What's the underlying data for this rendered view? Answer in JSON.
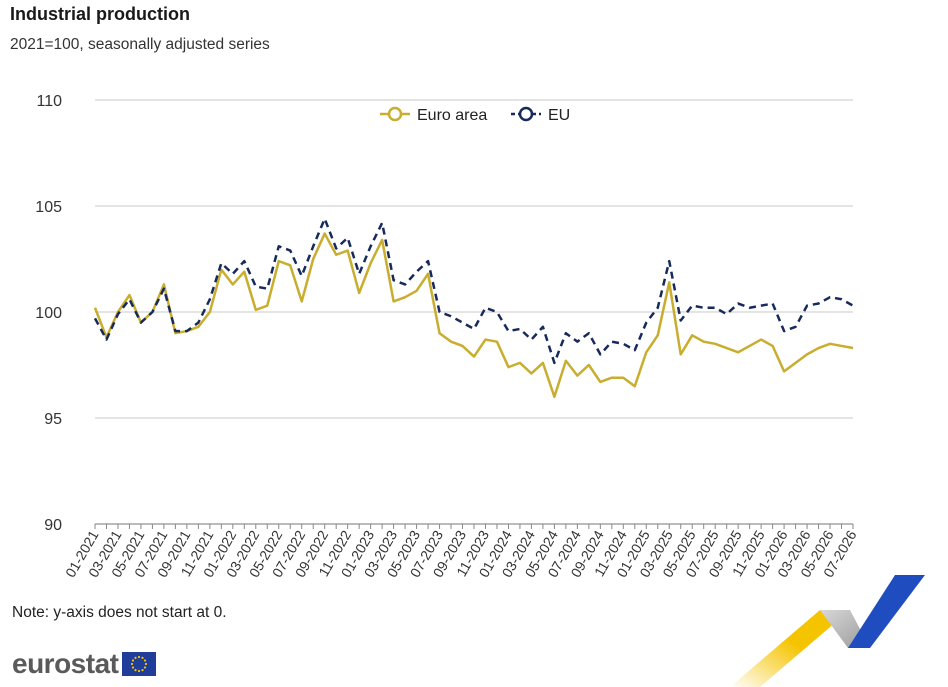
{
  "header": {
    "title": "Industrial production",
    "subtitle": "2021=100, seasonally adjusted series"
  },
  "footer": {
    "note": "Note: y-axis does not start at 0.",
    "logo": "eurostat"
  },
  "colors": {
    "euro_area": "#c9ad2e",
    "eu": "#172a5c",
    "grid": "#c8c8c8",
    "deco_yellow": "#f5c400",
    "deco_blue": "#1f4dbf"
  },
  "chart_data": {
    "type": "line",
    "title": "Industrial production",
    "subtitle": "2021=100, seasonally adjusted series",
    "ylim": [
      90,
      110
    ],
    "yticks": [
      90,
      95,
      100,
      105,
      110
    ],
    "grid": true,
    "legend_position": "top-center",
    "x": [
      "01-2021",
      "02-2021",
      "03-2021",
      "04-2021",
      "05-2021",
      "06-2021",
      "07-2021",
      "08-2021",
      "09-2021",
      "10-2021",
      "11-2021",
      "12-2021",
      "01-2022",
      "02-2022",
      "03-2022",
      "04-2022",
      "05-2022",
      "06-2022",
      "07-2022",
      "08-2022",
      "09-2022",
      "10-2022",
      "11-2022",
      "12-2022",
      "01-2023",
      "02-2023",
      "03-2023",
      "04-2023",
      "05-2023",
      "06-2023",
      "07-2023",
      "08-2023",
      "09-2023",
      "10-2023",
      "11-2023",
      "12-2023",
      "01-2024",
      "02-2024",
      "03-2024",
      "04-2024",
      "05-2024",
      "06-2024",
      "07-2024",
      "08-2024",
      "09-2024",
      "10-2024",
      "11-2024",
      "12-2024",
      "01-2025",
      "02-2025",
      "03-2025",
      "04-2025",
      "05-2025",
      "06-2025",
      "07-2025",
      "08-2025",
      "09-2025",
      "10-2025",
      "11-2025",
      "12-2025",
      "01-2026",
      "02-2026",
      "03-2026",
      "04-2026",
      "05-2026",
      "06-2026",
      "07-2026"
    ],
    "xtick_labels": [
      "01-2021",
      "03-2021",
      "05-2021",
      "07-2021",
      "09-2021",
      "11-2021",
      "01-2022",
      "03-2022",
      "05-2022",
      "07-2022",
      "09-2022",
      "11-2022",
      "01-2023",
      "03-2023",
      "05-2023",
      "07-2023",
      "09-2023",
      "11-2023",
      "01-2024",
      "03-2024",
      "05-2024",
      "07-2024",
      "09-2024",
      "11-2024",
      "01-2025",
      "03-2025",
      "05-2025",
      "07-2025",
      "09-2025",
      "11-2025",
      "01-2026",
      "03-2026",
      "05-2026",
      "07-2026"
    ],
    "series": [
      {
        "name": "Euro area",
        "style": "solid",
        "values": [
          100.2,
          98.8,
          100.0,
          100.8,
          99.5,
          100.0,
          101.3,
          99.0,
          99.1,
          99.3,
          100.0,
          102.0,
          101.3,
          101.9,
          100.1,
          100.3,
          102.4,
          102.2,
          100.5,
          102.5,
          103.7,
          102.7,
          102.9,
          100.9,
          102.3,
          103.4,
          100.5,
          100.7,
          101.0,
          101.8,
          99.0,
          98.6,
          98.4,
          97.9,
          98.7,
          98.6,
          97.4,
          97.6,
          97.1,
          97.6,
          96.0,
          97.7,
          97.0,
          97.5,
          96.7,
          96.9,
          96.9,
          96.5,
          98.1,
          98.9,
          101.4,
          98.0,
          98.9,
          98.6,
          98.5,
          98.3,
          98.1,
          98.4,
          98.7,
          98.4,
          97.2,
          97.6,
          98.0,
          98.3,
          98.5,
          98.4,
          98.3
        ]
      },
      {
        "name": "EU",
        "style": "dashed",
        "values": [
          99.7,
          98.7,
          99.9,
          100.6,
          99.5,
          100.0,
          101.1,
          99.1,
          99.1,
          99.5,
          100.6,
          102.3,
          101.8,
          102.4,
          101.2,
          101.1,
          103.1,
          102.9,
          101.7,
          103.1,
          104.4,
          103.0,
          103.5,
          101.8,
          103.1,
          104.2,
          101.5,
          101.3,
          101.9,
          102.4,
          100.0,
          99.8,
          99.5,
          99.2,
          100.2,
          100.0,
          99.1,
          99.2,
          98.7,
          99.3,
          97.6,
          99.0,
          98.6,
          99.0,
          98.0,
          98.6,
          98.5,
          98.2,
          99.5,
          100.2,
          102.4,
          99.6,
          100.3,
          100.2,
          100.2,
          99.9,
          100.4,
          100.2,
          100.3,
          100.4,
          99.1,
          99.3,
          100.3,
          100.4,
          100.7,
          100.6,
          100.3
        ]
      }
    ]
  }
}
